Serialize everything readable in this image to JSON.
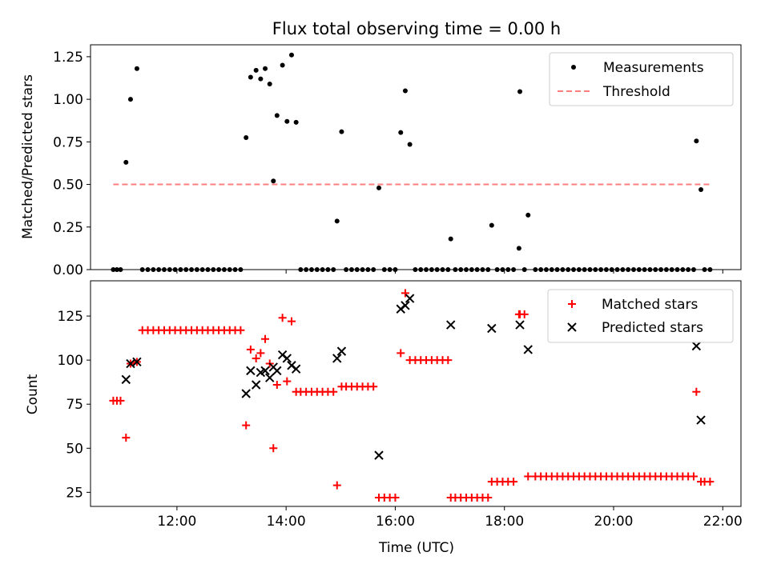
{
  "chart_data": [
    {
      "type": "scatter",
      "title": "Flux total observing time = 0.00 h",
      "xlabel": "",
      "ylabel": "Matched/Predicted stars",
      "xlim": [
        "10:25",
        "22:20"
      ],
      "ylim": [
        0,
        1.32
      ],
      "x_ticks": [
        "12:00",
        "14:00",
        "16:00",
        "18:00",
        "20:00",
        "22:00"
      ],
      "y_ticks": [
        "0.00",
        "0.25",
        "0.50",
        "0.75",
        "1.00",
        "1.25"
      ],
      "grid": false,
      "legend_position": "top-right",
      "series": [
        {
          "name": "Measurements",
          "marker": "dot",
          "color": "#000000",
          "points": [
            [
              "10:50",
              0
            ],
            [
              "10:54",
              0
            ],
            [
              "10:58",
              0
            ],
            [
              "11:04",
              0.63
            ],
            [
              "11:09",
              1.0
            ],
            [
              "11:16",
              1.18
            ],
            [
              "11:22",
              0
            ],
            [
              "11:28",
              0
            ],
            [
              "11:34",
              0
            ],
            [
              "11:40",
              0
            ],
            [
              "11:46",
              0
            ],
            [
              "11:52",
              0
            ],
            [
              "11:58",
              0
            ],
            [
              "12:04",
              0
            ],
            [
              "12:10",
              0
            ],
            [
              "12:16",
              0
            ],
            [
              "12:22",
              0
            ],
            [
              "12:28",
              0
            ],
            [
              "12:34",
              0
            ],
            [
              "12:40",
              0
            ],
            [
              "12:46",
              0
            ],
            [
              "12:52",
              0
            ],
            [
              "12:58",
              0
            ],
            [
              "13:04",
              0
            ],
            [
              "13:10",
              0
            ],
            [
              "13:16",
              0.775
            ],
            [
              "13:21",
              1.13
            ],
            [
              "13:27",
              1.17
            ],
            [
              "13:32",
              1.12
            ],
            [
              "13:37",
              1.18
            ],
            [
              "13:42",
              1.09
            ],
            [
              "13:46",
              0.52
            ],
            [
              "13:50",
              0.905
            ],
            [
              "13:56",
              1.2
            ],
            [
              "14:01",
              0.87
            ],
            [
              "14:06",
              1.26
            ],
            [
              "14:11",
              0.865
            ],
            [
              "14:16",
              0
            ],
            [
              "14:22",
              0
            ],
            [
              "14:28",
              0
            ],
            [
              "14:34",
              0
            ],
            [
              "14:40",
              0
            ],
            [
              "14:46",
              0
            ],
            [
              "14:52",
              0
            ],
            [
              "14:56",
              0.285
            ],
            [
              "15:01",
              0.81
            ],
            [
              "15:06",
              0
            ],
            [
              "15:12",
              0
            ],
            [
              "15:18",
              0
            ],
            [
              "15:24",
              0
            ],
            [
              "15:30",
              0
            ],
            [
              "15:36",
              0
            ],
            [
              "15:42",
              0.48
            ],
            [
              "15:48",
              0
            ],
            [
              "15:54",
              0
            ],
            [
              "16:00",
              0
            ],
            [
              "16:06",
              0.805
            ],
            [
              "16:11",
              1.05
            ],
            [
              "16:16",
              0.735
            ],
            [
              "16:22",
              0
            ],
            [
              "16:28",
              0
            ],
            [
              "16:34",
              0
            ],
            [
              "16:40",
              0
            ],
            [
              "16:46",
              0
            ],
            [
              "16:52",
              0
            ],
            [
              "16:58",
              0
            ],
            [
              "17:01",
              0.18
            ],
            [
              "17:06",
              0
            ],
            [
              "17:12",
              0
            ],
            [
              "17:18",
              0
            ],
            [
              "17:24",
              0
            ],
            [
              "17:30",
              0
            ],
            [
              "17:36",
              0
            ],
            [
              "17:42",
              0
            ],
            [
              "17:46",
              0.26
            ],
            [
              "17:52",
              0
            ],
            [
              "17:58",
              0
            ],
            [
              "18:04",
              0
            ],
            [
              "18:10",
              0
            ],
            [
              "18:16",
              0.125
            ],
            [
              "18:17",
              1.045
            ],
            [
              "18:22",
              0
            ],
            [
              "18:26",
              0.32
            ],
            [
              "18:34",
              0
            ],
            [
              "18:40",
              0
            ],
            [
              "18:46",
              0
            ],
            [
              "18:52",
              0
            ],
            [
              "18:58",
              0
            ],
            [
              "19:04",
              0
            ],
            [
              "19:10",
              0
            ],
            [
              "19:16",
              0
            ],
            [
              "19:22",
              0
            ],
            [
              "19:28",
              0
            ],
            [
              "19:34",
              0
            ],
            [
              "19:40",
              0
            ],
            [
              "19:46",
              0
            ],
            [
              "19:52",
              0
            ],
            [
              "19:58",
              0
            ],
            [
              "20:04",
              0
            ],
            [
              "20:10",
              0
            ],
            [
              "20:16",
              0
            ],
            [
              "20:22",
              0
            ],
            [
              "20:28",
              0
            ],
            [
              "20:34",
              0
            ],
            [
              "20:40",
              0
            ],
            [
              "20:46",
              0
            ],
            [
              "20:52",
              0
            ],
            [
              "20:58",
              0
            ],
            [
              "21:04",
              0
            ],
            [
              "21:10",
              0
            ],
            [
              "21:16",
              0
            ],
            [
              "21:22",
              0
            ],
            [
              "21:28",
              0
            ],
            [
              "21:31",
              0.755
            ],
            [
              "21:36",
              0.47
            ],
            [
              "21:40",
              0
            ],
            [
              "21:46",
              0
            ]
          ]
        },
        {
          "name": "Threshold",
          "style": "dashed-line",
          "color": "#ff7f7f",
          "points": [
            [
              "10:50",
              0.5
            ],
            [
              "21:46",
              0.5
            ]
          ]
        }
      ]
    },
    {
      "type": "scatter",
      "title": "",
      "xlabel": "Time (UTC)",
      "ylabel": "Count",
      "xlim": [
        "10:25",
        "22:20"
      ],
      "ylim": [
        17,
        145
      ],
      "x_ticks": [
        "12:00",
        "14:00",
        "16:00",
        "18:00",
        "20:00",
        "22:00"
      ],
      "y_ticks": [
        "25",
        "50",
        "75",
        "100",
        "125"
      ],
      "grid": false,
      "legend_position": "top-right",
      "series": [
        {
          "name": "Matched stars",
          "marker": "plus",
          "color": "#ff0000",
          "points": [
            [
              "10:50",
              77
            ],
            [
              "10:54",
              77
            ],
            [
              "10:58",
              77
            ],
            [
              "11:04",
              56
            ],
            [
              "11:09",
              98
            ],
            [
              "11:16",
              99
            ],
            [
              "11:22",
              117
            ],
            [
              "11:28",
              117
            ],
            [
              "11:34",
              117
            ],
            [
              "11:40",
              117
            ],
            [
              "11:46",
              117
            ],
            [
              "11:52",
              117
            ],
            [
              "11:58",
              117
            ],
            [
              "12:04",
              117
            ],
            [
              "12:10",
              117
            ],
            [
              "12:16",
              117
            ],
            [
              "12:22",
              117
            ],
            [
              "12:28",
              117
            ],
            [
              "12:34",
              117
            ],
            [
              "12:40",
              117
            ],
            [
              "12:46",
              117
            ],
            [
              "12:52",
              117
            ],
            [
              "12:58",
              117
            ],
            [
              "13:04",
              117
            ],
            [
              "13:10",
              117
            ],
            [
              "13:16",
              63
            ],
            [
              "13:21",
              106
            ],
            [
              "13:27",
              101
            ],
            [
              "13:32",
              104
            ],
            [
              "13:37",
              112
            ],
            [
              "13:42",
              98
            ],
            [
              "13:46",
              50
            ],
            [
              "13:50",
              86
            ],
            [
              "13:56",
              124
            ],
            [
              "14:01",
              88
            ],
            [
              "14:06",
              122
            ],
            [
              "14:11",
              82
            ],
            [
              "14:16",
              82
            ],
            [
              "14:22",
              82
            ],
            [
              "14:28",
              82
            ],
            [
              "14:34",
              82
            ],
            [
              "14:40",
              82
            ],
            [
              "14:46",
              82
            ],
            [
              "14:52",
              82
            ],
            [
              "14:56",
              29
            ],
            [
              "15:01",
              85
            ],
            [
              "15:06",
              85
            ],
            [
              "15:12",
              85
            ],
            [
              "15:18",
              85
            ],
            [
              "15:24",
              85
            ],
            [
              "15:30",
              85
            ],
            [
              "15:36",
              85
            ],
            [
              "15:42",
              22
            ],
            [
              "15:48",
              22
            ],
            [
              "15:54",
              22
            ],
            [
              "16:00",
              22
            ],
            [
              "16:06",
              104
            ],
            [
              "16:11",
              138
            ],
            [
              "16:16",
              100
            ],
            [
              "16:22",
              100
            ],
            [
              "16:28",
              100
            ],
            [
              "16:34",
              100
            ],
            [
              "16:40",
              100
            ],
            [
              "16:46",
              100
            ],
            [
              "16:52",
              100
            ],
            [
              "16:58",
              100
            ],
            [
              "17:01",
              22
            ],
            [
              "17:06",
              22
            ],
            [
              "17:12",
              22
            ],
            [
              "17:18",
              22
            ],
            [
              "17:24",
              22
            ],
            [
              "17:30",
              22
            ],
            [
              "17:36",
              22
            ],
            [
              "17:42",
              22
            ],
            [
              "17:46",
              31
            ],
            [
              "17:52",
              31
            ],
            [
              "17:58",
              31
            ],
            [
              "18:04",
              31
            ],
            [
              "18:10",
              31
            ],
            [
              "18:16",
              126
            ],
            [
              "18:17",
              126
            ],
            [
              "18:22",
              126
            ],
            [
              "18:26",
              34
            ],
            [
              "18:34",
              34
            ],
            [
              "18:40",
              34
            ],
            [
              "18:46",
              34
            ],
            [
              "18:52",
              34
            ],
            [
              "18:58",
              34
            ],
            [
              "19:04",
              34
            ],
            [
              "19:10",
              34
            ],
            [
              "19:16",
              34
            ],
            [
              "19:22",
              34
            ],
            [
              "19:28",
              34
            ],
            [
              "19:34",
              34
            ],
            [
              "19:40",
              34
            ],
            [
              "19:46",
              34
            ],
            [
              "19:52",
              34
            ],
            [
              "19:58",
              34
            ],
            [
              "20:04",
              34
            ],
            [
              "20:10",
              34
            ],
            [
              "20:16",
              34
            ],
            [
              "20:22",
              34
            ],
            [
              "20:28",
              34
            ],
            [
              "20:34",
              34
            ],
            [
              "20:40",
              34
            ],
            [
              "20:46",
              34
            ],
            [
              "20:52",
              34
            ],
            [
              "20:58",
              34
            ],
            [
              "21:04",
              34
            ],
            [
              "21:10",
              34
            ],
            [
              "21:16",
              34
            ],
            [
              "21:22",
              34
            ],
            [
              "21:28",
              34
            ],
            [
              "21:31",
              82
            ],
            [
              "21:36",
              31
            ],
            [
              "21:40",
              31
            ],
            [
              "21:46",
              31
            ]
          ]
        },
        {
          "name": "Predicted stars",
          "marker": "x",
          "color": "#000000",
          "points": [
            [
              "11:04",
              89
            ],
            [
              "11:09",
              98
            ],
            [
              "11:16",
              99
            ],
            [
              "13:16",
              81
            ],
            [
              "13:21",
              94
            ],
            [
              "13:27",
              86
            ],
            [
              "13:32",
              93
            ],
            [
              "13:37",
              94
            ],
            [
              "13:42",
              90
            ],
            [
              "13:46",
              96
            ],
            [
              "13:50",
              94
            ],
            [
              "13:56",
              103
            ],
            [
              "14:01",
              101
            ],
            [
              "14:06",
              97
            ],
            [
              "14:11",
              95
            ],
            [
              "14:56",
              101
            ],
            [
              "15:01",
              105
            ],
            [
              "15:42",
              46
            ],
            [
              "16:06",
              129
            ],
            [
              "16:11",
              131
            ],
            [
              "16:16",
              135
            ],
            [
              "17:01",
              120
            ],
            [
              "17:46",
              118
            ],
            [
              "18:17",
              120
            ],
            [
              "18:26",
              106
            ],
            [
              "21:31",
              108
            ],
            [
              "21:36",
              66
            ]
          ]
        }
      ]
    }
  ]
}
